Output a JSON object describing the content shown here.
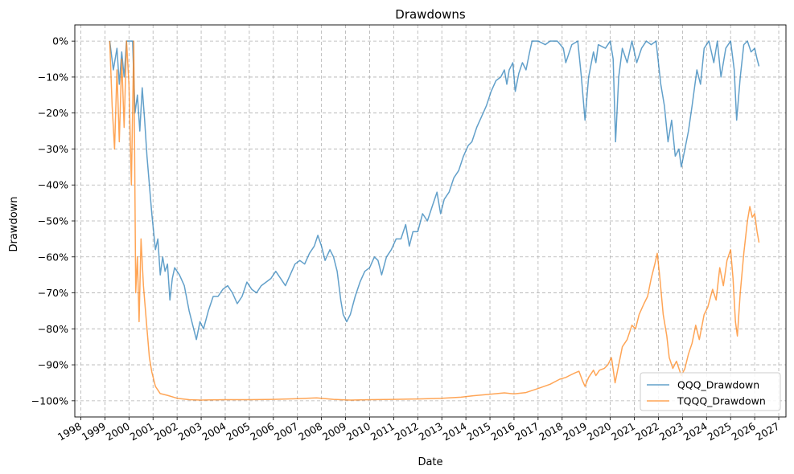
{
  "chart_data": {
    "type": "line",
    "title": "Drawdowns",
    "xlabel": "Date",
    "ylabel": "Drawdown",
    "xlim": [
      1997.75,
      2027.3
    ],
    "ylim": [
      -104.5,
      4.5
    ],
    "grid": true,
    "legend": "bottom-right",
    "x_ticks": [
      "1998",
      "1999",
      "2000",
      "2001",
      "2002",
      "2003",
      "2004",
      "2005",
      "2006",
      "2007",
      "2008",
      "2009",
      "2010",
      "2011",
      "2012",
      "2013",
      "2014",
      "2015",
      "2016",
      "2017",
      "2018",
      "2019",
      "2020",
      "2021",
      "2022",
      "2023",
      "2024",
      "2025",
      "2026",
      "2027"
    ],
    "y_ticks": [
      0,
      -10,
      -20,
      -30,
      -40,
      -50,
      -60,
      -70,
      -80,
      -90,
      -100
    ],
    "y_tick_labels": [
      "0%",
      "−10%",
      "−20%",
      "−30%",
      "−40%",
      "−50%",
      "−60%",
      "−70%",
      "−80%",
      "−90%",
      "−100%"
    ],
    "series": [
      {
        "name": "QQQ_Drawdown",
        "color": "#1f77b4",
        "points": [
          [
            1999.2,
            0
          ],
          [
            1999.35,
            -8
          ],
          [
            1999.5,
            -2
          ],
          [
            1999.6,
            -12
          ],
          [
            1999.7,
            -3
          ],
          [
            1999.8,
            -10
          ],
          [
            1999.9,
            0
          ],
          [
            2000.05,
            0
          ],
          [
            2000.15,
            0
          ],
          [
            2000.25,
            -20
          ],
          [
            2000.35,
            -15
          ],
          [
            2000.45,
            -25
          ],
          [
            2000.55,
            -13
          ],
          [
            2000.65,
            -22
          ],
          [
            2000.75,
            -32
          ],
          [
            2000.85,
            -40
          ],
          [
            2000.95,
            -48
          ],
          [
            2001.1,
            -58
          ],
          [
            2001.2,
            -55
          ],
          [
            2001.3,
            -65
          ],
          [
            2001.4,
            -60
          ],
          [
            2001.5,
            -64
          ],
          [
            2001.6,
            -62
          ],
          [
            2001.7,
            -72
          ],
          [
            2001.8,
            -66
          ],
          [
            2001.9,
            -63
          ],
          [
            2002.1,
            -65
          ],
          [
            2002.3,
            -68
          ],
          [
            2002.5,
            -75
          ],
          [
            2002.65,
            -79
          ],
          [
            2002.8,
            -83
          ],
          [
            2002.95,
            -78
          ],
          [
            2003.1,
            -80
          ],
          [
            2003.3,
            -75
          ],
          [
            2003.5,
            -71
          ],
          [
            2003.7,
            -71
          ],
          [
            2003.9,
            -69
          ],
          [
            2004.1,
            -68
          ],
          [
            2004.3,
            -70
          ],
          [
            2004.5,
            -73
          ],
          [
            2004.7,
            -71
          ],
          [
            2004.9,
            -67
          ],
          [
            2005.1,
            -69
          ],
          [
            2005.3,
            -70
          ],
          [
            2005.5,
            -68
          ],
          [
            2005.7,
            -67
          ],
          [
            2005.9,
            -66
          ],
          [
            2006.1,
            -64
          ],
          [
            2006.3,
            -66
          ],
          [
            2006.5,
            -68
          ],
          [
            2006.7,
            -65
          ],
          [
            2006.9,
            -62
          ],
          [
            2007.1,
            -61
          ],
          [
            2007.3,
            -62
          ],
          [
            2007.5,
            -59
          ],
          [
            2007.7,
            -57
          ],
          [
            2007.85,
            -54
          ],
          [
            2008.0,
            -57
          ],
          [
            2008.15,
            -61
          ],
          [
            2008.35,
            -58
          ],
          [
            2008.5,
            -60
          ],
          [
            2008.65,
            -64
          ],
          [
            2008.8,
            -72
          ],
          [
            2008.9,
            -76
          ],
          [
            2009.05,
            -78
          ],
          [
            2009.2,
            -76
          ],
          [
            2009.4,
            -71
          ],
          [
            2009.6,
            -67
          ],
          [
            2009.8,
            -64
          ],
          [
            2010.0,
            -63
          ],
          [
            2010.2,
            -60
          ],
          [
            2010.35,
            -61
          ],
          [
            2010.5,
            -65
          ],
          [
            2010.7,
            -60
          ],
          [
            2010.9,
            -58
          ],
          [
            2011.1,
            -55
          ],
          [
            2011.3,
            -55
          ],
          [
            2011.5,
            -51
          ],
          [
            2011.65,
            -57
          ],
          [
            2011.8,
            -53
          ],
          [
            2012.0,
            -53
          ],
          [
            2012.2,
            -48
          ],
          [
            2012.4,
            -50
          ],
          [
            2012.6,
            -46
          ],
          [
            2012.8,
            -42
          ],
          [
            2012.95,
            -48
          ],
          [
            2013.1,
            -44
          ],
          [
            2013.3,
            -42
          ],
          [
            2013.5,
            -38
          ],
          [
            2013.7,
            -36
          ],
          [
            2013.9,
            -32
          ],
          [
            2014.1,
            -29
          ],
          [
            2014.25,
            -28
          ],
          [
            2014.45,
            -24
          ],
          [
            2014.65,
            -21
          ],
          [
            2014.85,
            -18
          ],
          [
            2015.05,
            -14
          ],
          [
            2015.25,
            -11
          ],
          [
            2015.45,
            -10
          ],
          [
            2015.6,
            -8
          ],
          [
            2015.7,
            -12
          ],
          [
            2015.8,
            -8
          ],
          [
            2015.95,
            -6
          ],
          [
            2016.05,
            -14
          ],
          [
            2016.2,
            -9
          ],
          [
            2016.35,
            -6
          ],
          [
            2016.5,
            -8
          ],
          [
            2016.65,
            -3
          ],
          [
            2016.75,
            0
          ],
          [
            2017.0,
            0
          ],
          [
            2017.3,
            -1
          ],
          [
            2017.5,
            0
          ],
          [
            2017.8,
            0
          ],
          [
            2018.05,
            -2
          ],
          [
            2018.15,
            -6
          ],
          [
            2018.4,
            -1
          ],
          [
            2018.65,
            0
          ],
          [
            2018.8,
            -10
          ],
          [
            2018.95,
            -22
          ],
          [
            2019.1,
            -10
          ],
          [
            2019.3,
            -3
          ],
          [
            2019.4,
            -6
          ],
          [
            2019.5,
            -1
          ],
          [
            2019.8,
            -2
          ],
          [
            2020.0,
            0
          ],
          [
            2020.12,
            -5
          ],
          [
            2020.22,
            -28
          ],
          [
            2020.35,
            -10
          ],
          [
            2020.5,
            -2
          ],
          [
            2020.7,
            -6
          ],
          [
            2020.9,
            0
          ],
          [
            2021.1,
            -6
          ],
          [
            2021.3,
            -2
          ],
          [
            2021.5,
            0
          ],
          [
            2021.7,
            -1
          ],
          [
            2021.9,
            0
          ],
          [
            2022.1,
            -12
          ],
          [
            2022.25,
            -18
          ],
          [
            2022.4,
            -28
          ],
          [
            2022.55,
            -22
          ],
          [
            2022.7,
            -32
          ],
          [
            2022.85,
            -30
          ],
          [
            2022.95,
            -35
          ],
          [
            2023.1,
            -30
          ],
          [
            2023.25,
            -25
          ],
          [
            2023.4,
            -18
          ],
          [
            2023.6,
            -8
          ],
          [
            2023.75,
            -12
          ],
          [
            2023.9,
            -2
          ],
          [
            2024.1,
            0
          ],
          [
            2024.3,
            -6
          ],
          [
            2024.45,
            0
          ],
          [
            2024.6,
            -10
          ],
          [
            2024.8,
            -2
          ],
          [
            2025.0,
            0
          ],
          [
            2025.15,
            -8
          ],
          [
            2025.25,
            -22
          ],
          [
            2025.4,
            -10
          ],
          [
            2025.55,
            -1
          ],
          [
            2025.7,
            0
          ],
          [
            2025.85,
            -3
          ],
          [
            2026.0,
            -2
          ],
          [
            2026.1,
            -5
          ],
          [
            2026.18,
            -7
          ]
        ]
      },
      {
        "name": "TQQQ_Drawdown",
        "color": "#ff7f0e",
        "points": [
          [
            1999.2,
            0
          ],
          [
            1999.3,
            -18
          ],
          [
            1999.4,
            -30
          ],
          [
            1999.5,
            -8
          ],
          [
            1999.6,
            -28
          ],
          [
            1999.7,
            -5
          ],
          [
            1999.8,
            -24
          ],
          [
            1999.9,
            0
          ],
          [
            2000.0,
            -12
          ],
          [
            2000.1,
            -40
          ],
          [
            2000.2,
            0
          ],
          [
            2000.28,
            -70
          ],
          [
            2000.35,
            -60
          ],
          [
            2000.42,
            -78
          ],
          [
            2000.5,
            -55
          ],
          [
            2000.6,
            -68
          ],
          [
            2000.75,
            -80
          ],
          [
            2000.85,
            -88
          ],
          [
            2000.95,
            -92
          ],
          [
            2001.1,
            -96
          ],
          [
            2001.3,
            -98
          ],
          [
            2001.6,
            -98.5
          ],
          [
            2002.0,
            -99.3
          ],
          [
            2002.5,
            -99.7
          ],
          [
            2003.0,
            -99.8
          ],
          [
            2004.0,
            -99.7
          ],
          [
            2005.0,
            -99.7
          ],
          [
            2006.0,
            -99.6
          ],
          [
            2007.0,
            -99.4
          ],
          [
            2007.8,
            -99.2
          ],
          [
            2008.5,
            -99.6
          ],
          [
            2009.2,
            -99.8
          ],
          [
            2010.0,
            -99.7
          ],
          [
            2011.0,
            -99.6
          ],
          [
            2012.0,
            -99.5
          ],
          [
            2013.0,
            -99.3
          ],
          [
            2013.8,
            -99.0
          ],
          [
            2014.3,
            -98.6
          ],
          [
            2015.0,
            -98.2
          ],
          [
            2015.6,
            -97.8
          ],
          [
            2016.0,
            -98.1
          ],
          [
            2016.5,
            -97.7
          ],
          [
            2017.0,
            -96.6
          ],
          [
            2017.5,
            -95.4
          ],
          [
            2017.9,
            -94.0
          ],
          [
            2018.15,
            -93.5
          ],
          [
            2018.3,
            -93.0
          ],
          [
            2018.55,
            -92.2
          ],
          [
            2018.7,
            -91.8
          ],
          [
            2018.85,
            -94.5
          ],
          [
            2018.95,
            -96.0
          ],
          [
            2019.1,
            -93.5
          ],
          [
            2019.3,
            -91.5
          ],
          [
            2019.4,
            -93.0
          ],
          [
            2019.55,
            -91.5
          ],
          [
            2019.75,
            -91.0
          ],
          [
            2019.9,
            -90.0
          ],
          [
            2020.05,
            -88.0
          ],
          [
            2020.2,
            -95.0
          ],
          [
            2020.35,
            -90.0
          ],
          [
            2020.5,
            -85.0
          ],
          [
            2020.7,
            -83.0
          ],
          [
            2020.9,
            -79.0
          ],
          [
            2021.05,
            -80.0
          ],
          [
            2021.2,
            -76.0
          ],
          [
            2021.4,
            -73.0
          ],
          [
            2021.55,
            -71.0
          ],
          [
            2021.7,
            -66.0
          ],
          [
            2021.85,
            -62.0
          ],
          [
            2021.95,
            -59.0
          ],
          [
            2022.05,
            -65.0
          ],
          [
            2022.2,
            -76.0
          ],
          [
            2022.35,
            -82.0
          ],
          [
            2022.45,
            -88.0
          ],
          [
            2022.6,
            -91.0
          ],
          [
            2022.75,
            -89.0
          ],
          [
            2022.95,
            -93.0
          ],
          [
            2023.1,
            -91.0
          ],
          [
            2023.25,
            -87.0
          ],
          [
            2023.4,
            -84.0
          ],
          [
            2023.55,
            -79.0
          ],
          [
            2023.7,
            -83.0
          ],
          [
            2023.9,
            -76.0
          ],
          [
            2024.05,
            -74.0
          ],
          [
            2024.25,
            -69.0
          ],
          [
            2024.4,
            -72.0
          ],
          [
            2024.55,
            -63.0
          ],
          [
            2024.7,
            -68.0
          ],
          [
            2024.85,
            -61.0
          ],
          [
            2025.0,
            -58.0
          ],
          [
            2025.1,
            -66.0
          ],
          [
            2025.2,
            -78.0
          ],
          [
            2025.28,
            -82.0
          ],
          [
            2025.4,
            -70.0
          ],
          [
            2025.55,
            -59.0
          ],
          [
            2025.7,
            -50.0
          ],
          [
            2025.8,
            -46.0
          ],
          [
            2025.9,
            -49.0
          ],
          [
            2026.0,
            -48.0
          ],
          [
            2026.1,
            -53.0
          ],
          [
            2026.18,
            -56.0
          ]
        ]
      }
    ]
  }
}
